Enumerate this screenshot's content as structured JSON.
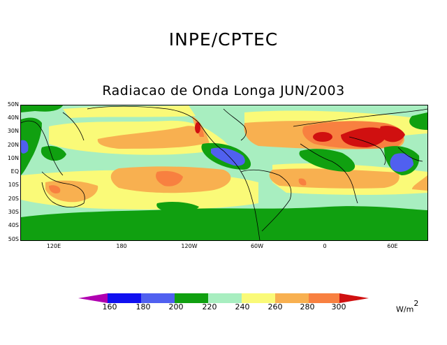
{
  "header": {
    "title": "INPE/CPTEC"
  },
  "map": {
    "title": "Radiacao de Onda Longa JUN/2003",
    "lat_labels": [
      "50N",
      "40N",
      "30N",
      "20N",
      "10N",
      "EQ",
      "10S",
      "20S",
      "30S",
      "40S",
      "50S"
    ],
    "lon_labels": [
      "120E",
      "180",
      "120W",
      "60W",
      "0",
      "60E"
    ]
  },
  "legend": {
    "ticks": [
      "160",
      "180",
      "200",
      "220",
      "240",
      "260",
      "280",
      "300"
    ],
    "units_base": "W/m",
    "units_exp": "2",
    "colors": [
      "#b000b0",
      "#1010f0",
      "#5060f0",
      "#10a010",
      "#a8eec0",
      "#fafa78",
      "#f8b050",
      "#f88040",
      "#d01010"
    ]
  }
}
